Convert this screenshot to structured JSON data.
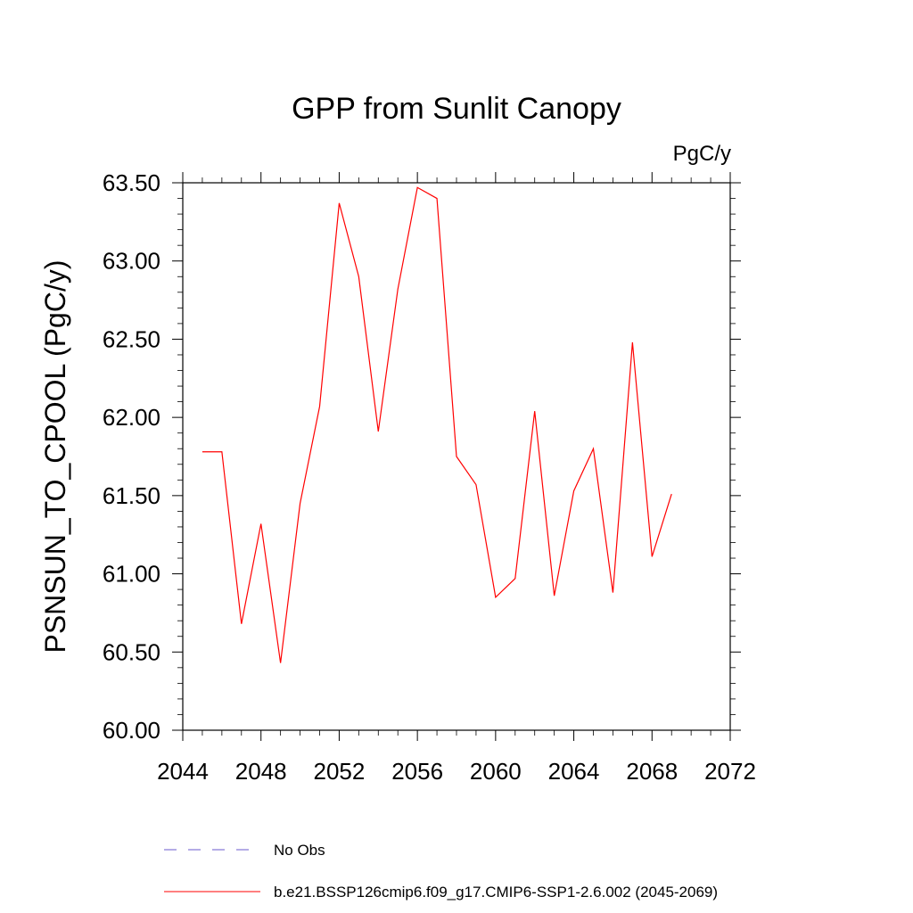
{
  "chart_data": {
    "type": "line",
    "title": "GPP from Sunlit Canopy",
    "units": "PgC/y",
    "ylabel": "PSNSUN_TO_CPOOL  (PgC/y)",
    "xlabel": "",
    "xlim": [
      2044,
      2072
    ],
    "ylim": [
      60.0,
      63.5
    ],
    "x_ticks": [
      "2044",
      "2048",
      "2052",
      "2056",
      "2060",
      "2064",
      "2068",
      "2072"
    ],
    "y_ticks": [
      "60.00",
      "60.50",
      "61.00",
      "61.50",
      "62.00",
      "62.50",
      "63.00",
      "63.50"
    ],
    "grid": false,
    "legend_placement": "bottom",
    "x": [
      2045,
      2046,
      2047,
      2048,
      2049,
      2050,
      2051,
      2052,
      2053,
      2054,
      2055,
      2056,
      2057,
      2058,
      2059,
      2060,
      2061,
      2062,
      2063,
      2064,
      2065,
      2066,
      2067,
      2068,
      2069
    ],
    "series": [
      {
        "name": "b.e21.BSSP126cmip6.f09_g17.CMIP6-SSP1-2.6.002 (2045-2069)",
        "color": "#ff0000",
        "style": "solid",
        "values": [
          61.78,
          61.78,
          60.68,
          61.32,
          60.43,
          61.45,
          62.07,
          63.37,
          62.9,
          61.91,
          62.82,
          63.47,
          63.4,
          61.75,
          61.57,
          60.85,
          60.97,
          62.04,
          60.86,
          61.53,
          61.8,
          60.88,
          62.48,
          61.11,
          61.51
        ]
      }
    ],
    "legend": [
      {
        "label": "No Obs",
        "color": "#6a5acd",
        "style": "dashed"
      },
      {
        "label": "b.e21.BSSP126cmip6.f09_g17.CMIP6-SSP1-2.6.002 (2045-2069)",
        "color": "#ff0000",
        "style": "solid"
      }
    ]
  }
}
